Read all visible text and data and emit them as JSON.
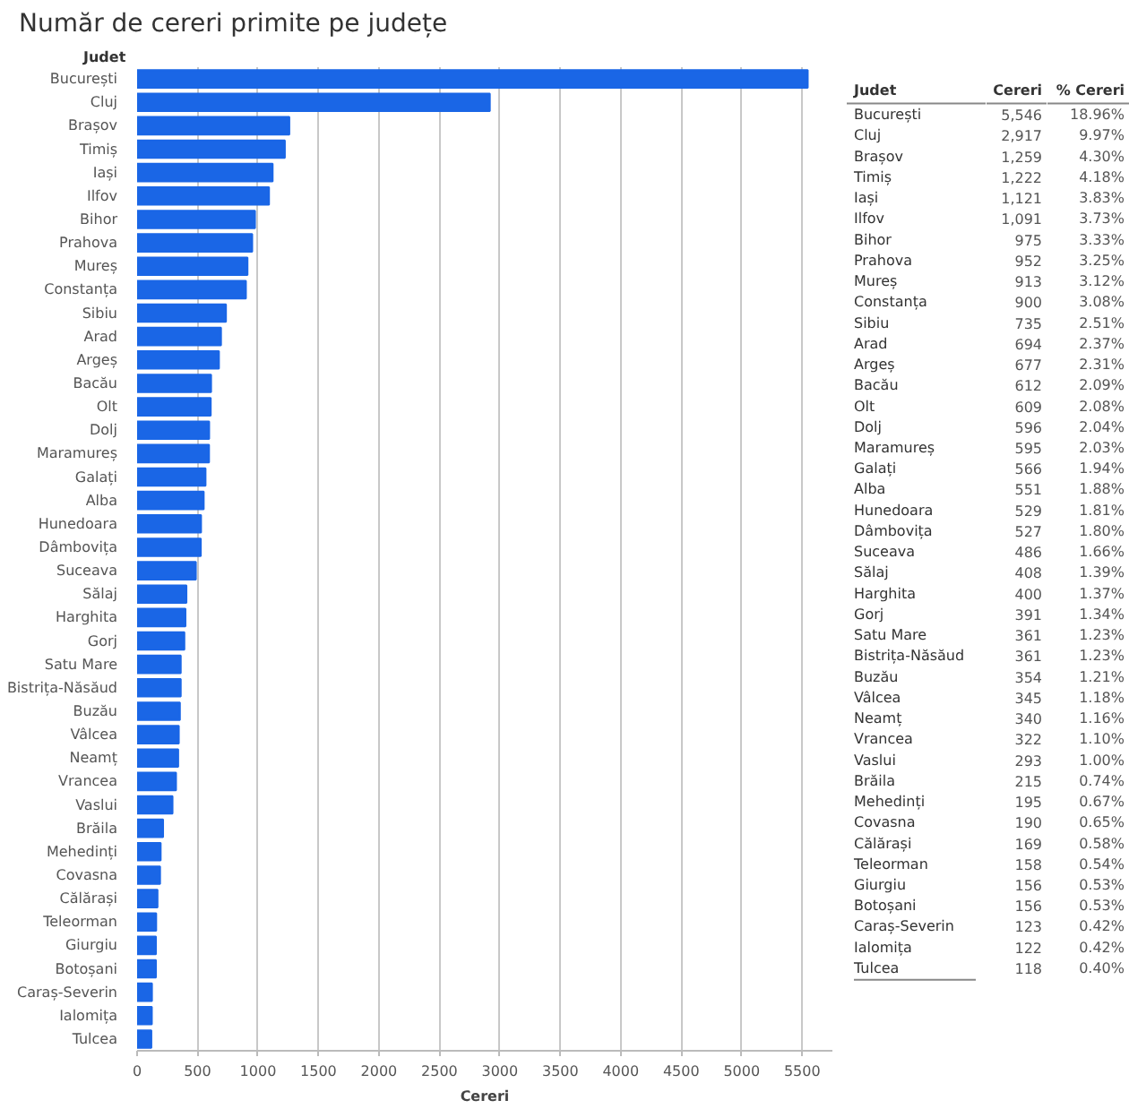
{
  "chart_data": [
    {
      "type": "bar",
      "orientation": "horizontal",
      "title": "Număr de cereri primite pe județe",
      "xlabel": "Cereri",
      "ylabel": "Judet",
      "categories": [
        "București",
        "Cluj",
        "Brașov",
        "Timiș",
        "Iași",
        "Ilfov",
        "Bihor",
        "Prahova",
        "Mureș",
        "Constanța",
        "Sibiu",
        "Arad",
        "Argeș",
        "Bacău",
        "Olt",
        "Dolj",
        "Maramureș",
        "Galați",
        "Alba",
        "Hunedoara",
        "Dâmbovița",
        "Suceava",
        "Sălaj",
        "Harghita",
        "Gorj",
        "Satu Mare",
        "Bistrița-Năsăud",
        "Buzău",
        "Vâlcea",
        "Neamț",
        "Vrancea",
        "Vaslui",
        "Brăila",
        "Mehedinți",
        "Covasna",
        "Călărași",
        "Teleorman",
        "Giurgiu",
        "Botoșani",
        "Caraș-Severin",
        "Ialomița",
        "Tulcea"
      ],
      "values": [
        5546,
        2917,
        1259,
        1222,
        1121,
        1091,
        975,
        952,
        913,
        900,
        735,
        694,
        677,
        612,
        609,
        596,
        595,
        566,
        551,
        529,
        527,
        486,
        408,
        400,
        391,
        361,
        361,
        354,
        345,
        340,
        322,
        293,
        215,
        195,
        190,
        169,
        158,
        156,
        156,
        123,
        122,
        118
      ],
      "color": "#1a66e6",
      "xlim": [
        0,
        5750
      ],
      "xticks": [
        0,
        500,
        1000,
        1500,
        2000,
        2500,
        3000,
        3500,
        4000,
        4500,
        5000,
        5500
      ],
      "grid": "x"
    },
    {
      "type": "other",
      "title": "Judet",
      "annotations": [
        "București",
        "Cluj",
        "Brașov",
        "Timiș",
        "Iași",
        "Ilfov",
        "Bihor",
        "Prahova",
        "Mureș",
        "Constanța",
        "Sibiu",
        "Arad",
        "Argeș",
        "Bacău",
        "Olt",
        "Dolj",
        "Maramureș",
        "Galați",
        "Alba",
        "Hunedoara",
        "Dâmbovița",
        "Suceava",
        "Sălaj",
        "Harghita",
        "Gorj",
        "Satu Mare",
        "Bistrița-Năsăud",
        "Buzău",
        "Vâlcea",
        "Neamț",
        "Vrancea",
        "Vaslui",
        "Brăila",
        "Mehedinți",
        "Covasna",
        "Călărași",
        "Teleorman",
        "Giurgiu",
        "Botoșani",
        "Caraș-Severin",
        "Ialomița",
        "Tulcea"
      ]
    },
    {
      "type": "other",
      "title": "Cereri",
      "annotations": [
        "5,546",
        "2,917",
        "1,259",
        "1,222",
        "1,121",
        "1,091",
        "975",
        "952",
        "913",
        "900",
        "735",
        "694",
        "677",
        "612",
        "609",
        "596",
        "595",
        "566",
        "551",
        "529",
        "527",
        "486",
        "408",
        "400",
        "391",
        "361",
        "361",
        "354",
        "345",
        "340",
        "322",
        "293",
        "215",
        "195",
        "190",
        "169",
        "158",
        "156",
        "156",
        "123",
        "122",
        "118"
      ]
    },
    {
      "type": "other",
      "title": "% Cereri",
      "annotations": [
        "18.96%",
        "9.97%",
        "4.30%",
        "4.18%",
        "3.83%",
        "3.73%",
        "3.33%",
        "3.25%",
        "3.12%",
        "3.08%",
        "2.51%",
        "2.37%",
        "2.31%",
        "2.09%",
        "2.08%",
        "2.04%",
        "2.03%",
        "1.94%",
        "1.88%",
        "1.81%",
        "1.80%",
        "1.66%",
        "1.39%",
        "1.37%",
        "1.34%",
        "1.23%",
        "1.23%",
        "1.21%",
        "1.18%",
        "1.16%",
        "1.10%",
        "1.00%",
        "0.74%",
        "0.67%",
        "0.65%",
        "0.58%",
        "0.54%",
        "0.53%",
        "0.53%",
        "0.42%",
        "0.42%",
        "0.40%"
      ]
    }
  ]
}
